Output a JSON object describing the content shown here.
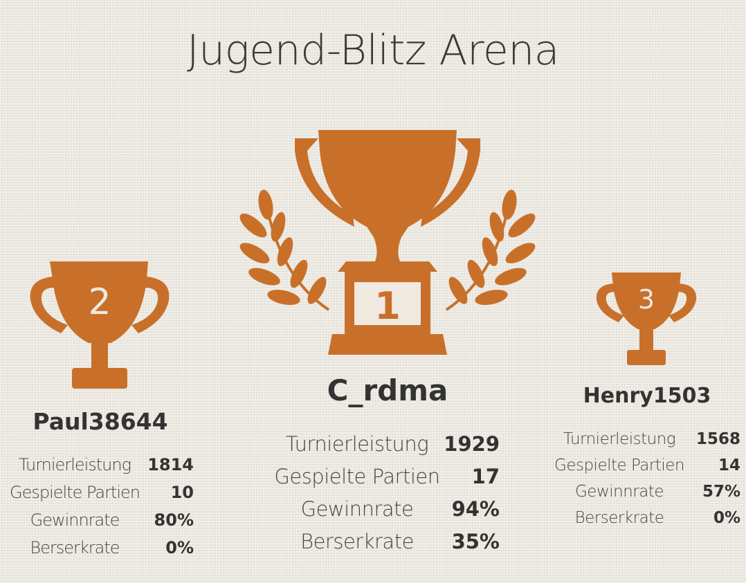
{
  "title": "Jugend-Blitz Arena",
  "colors": {
    "trophy": "#c8702a",
    "background": "#eeeae2",
    "text": "#333333"
  },
  "icons": {
    "first": "trophy-with-laurel-icon",
    "second": "trophy-cup-icon",
    "third": "trophy-cup-icon"
  },
  "podium": {
    "first": {
      "rank": "1",
      "name": "C_rdma",
      "stats": [
        {
          "label": "Turnierleistung",
          "value": "1929"
        },
        {
          "label": "Gespielte Partien",
          "value": "17"
        },
        {
          "label": "Gewinnrate",
          "value": "94%"
        },
        {
          "label": "Berserkrate",
          "value": "35%"
        }
      ]
    },
    "second": {
      "rank": "2",
      "name": "Paul38644",
      "stats": [
        {
          "label": "Turnierleistung",
          "value": "1814"
        },
        {
          "label": "Gespielte Partien",
          "value": "10"
        },
        {
          "label": "Gewinnrate",
          "value": "80%"
        },
        {
          "label": "Berserkrate",
          "value": "0%"
        }
      ]
    },
    "third": {
      "rank": "3",
      "name": "Henry1503",
      "stats": [
        {
          "label": "Turnierleistung",
          "value": "1568"
        },
        {
          "label": "Gespielte Partien",
          "value": "14"
        },
        {
          "label": "Gewinnrate",
          "value": "57%"
        },
        {
          "label": "Berserkrate",
          "value": "0%"
        }
      ]
    }
  }
}
